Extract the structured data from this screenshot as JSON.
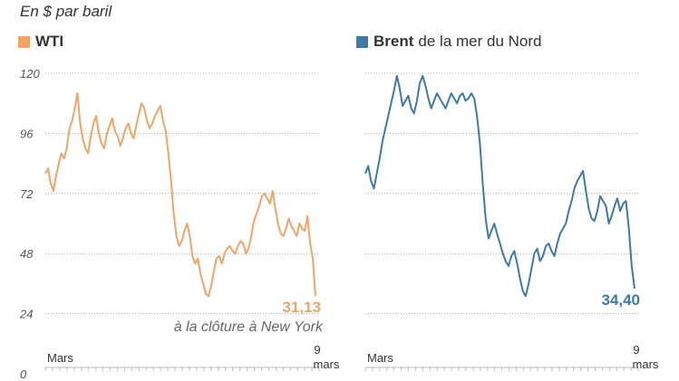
{
  "chart_data": {
    "type": "line",
    "subtitle": "En $ par baril",
    "ylim": [
      0,
      120
    ],
    "yticks": [
      "120",
      "96",
      "72",
      "48",
      "24",
      "0"
    ],
    "ytick_values": [
      120,
      96,
      72,
      48,
      24,
      0
    ],
    "x_start_label": "Mars",
    "x_end_day": "9",
    "x_end_month": "mars",
    "series": [
      {
        "name": "WTI",
        "legend_bold": "WTI",
        "legend_rest": "",
        "color": "#f0a468",
        "last_value_label": "31,13",
        "note": "à la clôture à New York",
        "values": [
          80,
          82,
          76,
          73,
          79,
          84,
          88,
          86,
          90,
          98,
          101,
          106,
          112,
          100,
          94,
          90,
          88,
          95,
          100,
          103,
          96,
          92,
          90,
          96,
          99,
          102,
          97,
          95,
          91,
          94,
          98,
          100,
          96,
          94,
          99,
          104,
          108,
          106,
          101,
          98,
          100,
          103,
          105,
          107,
          101,
          97,
          88,
          77,
          64,
          55,
          51,
          53,
          57,
          60,
          55,
          47,
          44,
          46,
          40,
          36,
          32,
          31,
          35,
          41,
          46,
          47,
          44,
          48,
          50,
          51,
          49,
          48,
          51,
          53,
          52,
          48,
          50,
          55,
          61,
          64,
          67,
          71,
          72,
          70,
          68,
          73,
          66,
          60,
          56,
          55,
          58,
          62,
          59,
          57,
          55,
          60,
          58,
          57,
          63,
          52,
          46,
          31
        ]
      },
      {
        "name": "Brent de la mer du Nord",
        "legend_bold": "Brent",
        "legend_rest": "de la mer du Nord",
        "color": "#3d7aa5",
        "last_value_label": "34,40",
        "note": "",
        "values": [
          80,
          83,
          77,
          74,
          80,
          86,
          93,
          98,
          103,
          108,
          113,
          119,
          114,
          107,
          109,
          111,
          106,
          104,
          109,
          116,
          119,
          115,
          110,
          106,
          109,
          112,
          110,
          108,
          106,
          109,
          112,
          110,
          108,
          111,
          112,
          109,
          110,
          112,
          110,
          103,
          92,
          76,
          62,
          54,
          57,
          60,
          56,
          52,
          48,
          45,
          43,
          47,
          49,
          44,
          38,
          33,
          31,
          36,
          42,
          48,
          50,
          45,
          47,
          51,
          52,
          49,
          47,
          52,
          56,
          58,
          60,
          65,
          69,
          74,
          77,
          79,
          81,
          73,
          66,
          62,
          61,
          65,
          71,
          69,
          67,
          60,
          63,
          67,
          70,
          65,
          68,
          69,
          58,
          43,
          34
        ]
      }
    ]
  }
}
